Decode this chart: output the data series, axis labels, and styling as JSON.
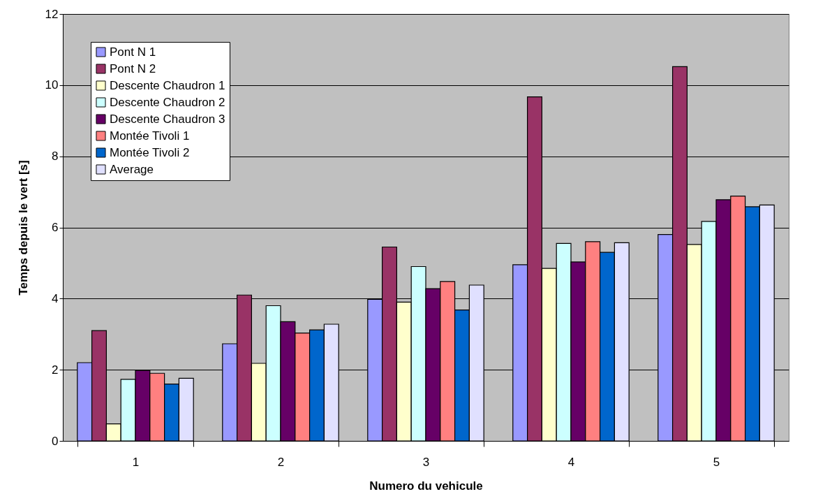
{
  "chart_data": {
    "type": "bar",
    "xlabel": "Numero du vehicule",
    "ylabel": "Temps depuis le vert [s]",
    "categories": [
      "1",
      "2",
      "3",
      "4",
      "5"
    ],
    "series": [
      {
        "name": "Pont N 1",
        "color": "#9999ff",
        "values": [
          2.2,
          2.73,
          3.98,
          4.95,
          5.8
        ]
      },
      {
        "name": "Pont N 2",
        "color": "#993366",
        "values": [
          3.1,
          4.1,
          5.45,
          9.67,
          10.52
        ]
      },
      {
        "name": "Descente Chaudron 1",
        "color": "#ffffcc",
        "values": [
          0.48,
          2.18,
          3.9,
          4.85,
          5.52
        ]
      },
      {
        "name": "Descente Chaudron 2",
        "color": "#ccffff",
        "values": [
          1.73,
          3.8,
          4.9,
          5.55,
          6.17
        ]
      },
      {
        "name": "Descente Chaudron 3",
        "color": "#660066",
        "values": [
          1.98,
          3.35,
          4.28,
          5.03,
          6.78
        ]
      },
      {
        "name": "Montée Tivoli 1",
        "color": "#ff8080",
        "values": [
          1.9,
          3.03,
          4.48,
          5.6,
          6.88
        ]
      },
      {
        "name": "Montée Tivoli 2",
        "color": "#0066cc",
        "values": [
          1.6,
          3.12,
          3.68,
          5.3,
          6.58
        ]
      },
      {
        "name": "Average",
        "color": "#e0e0ff",
        "values": [
          1.76,
          3.28,
          4.38,
          5.57,
          6.63
        ]
      }
    ],
    "ylim": [
      0,
      12
    ],
    "yticks": [
      0,
      2,
      4,
      6,
      8,
      10,
      12
    ],
    "grid": "y",
    "legend": "top left"
  }
}
